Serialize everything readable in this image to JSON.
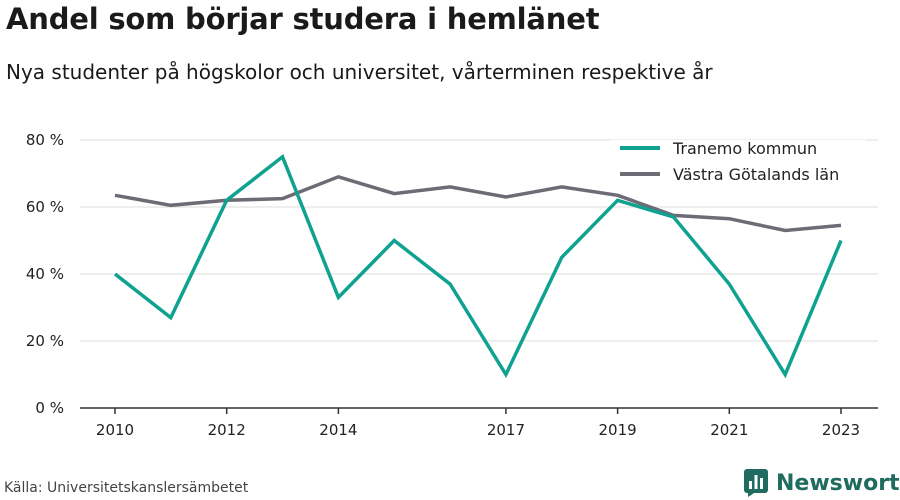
{
  "header": {
    "title": "Andel som börjar studera i hemlänet",
    "subtitle": "Nya studenter på högskolor och universitet, vårterminen respektive år"
  },
  "footer": {
    "source": "Källa: Universitetskanslersämbetet",
    "brand": "Newsworthy",
    "brand_icon": "newsworthy-logo-icon"
  },
  "colors": {
    "series_1": "#0fa290",
    "series_2": "#6d6b75",
    "grid": "#dddddd",
    "axis": "#333333",
    "brand": "#1f6b5f"
  },
  "chart_data": {
    "type": "line",
    "x": [
      2010,
      2011,
      2012,
      2013,
      2014,
      2015,
      2016,
      2017,
      2018,
      2019,
      2020,
      2021,
      2022,
      2023
    ],
    "xticks": [
      "2010",
      "2012",
      "2014",
      "2017",
      "2019",
      "2021",
      "2023"
    ],
    "yticks": [
      "0 %",
      "20 %",
      "40 %",
      "60 %",
      "80 %"
    ],
    "ylim": [
      0,
      80
    ],
    "grid": true,
    "legend_position": "top-right",
    "series": [
      {
        "name": "Tranemo kommun",
        "values": [
          40,
          27,
          62,
          75,
          33,
          50,
          37,
          10,
          45,
          62,
          57,
          37,
          10,
          50
        ]
      },
      {
        "name": "Västra Götalands län",
        "values": [
          63.5,
          60.5,
          62,
          62.5,
          69,
          64,
          66,
          63,
          66,
          63.5,
          57.5,
          56.5,
          53,
          54.5
        ]
      }
    ]
  }
}
